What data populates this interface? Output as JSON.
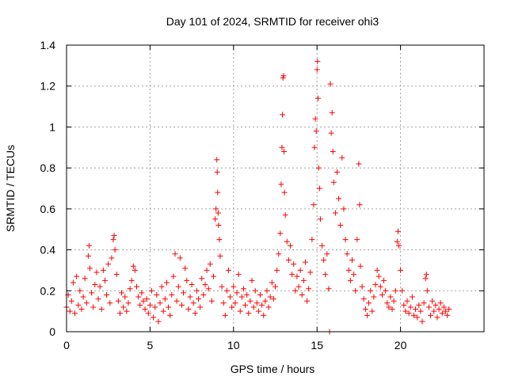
{
  "chart_data": {
    "type": "scatter",
    "title": "Day 101 of 2024, SRMTID for receiver ohi3",
    "xlabel": "GPS time / hours",
    "ylabel": "SRMTID / TECUs",
    "xlim": [
      0,
      25
    ],
    "ylim": [
      0,
      1.4
    ],
    "x_ticks": [
      "0",
      "5",
      "10",
      "15",
      "20"
    ],
    "x_tick_values": [
      0,
      5,
      10,
      15,
      20
    ],
    "y_ticks": [
      "0",
      "0.2",
      "0.4",
      "0.6",
      "0.8",
      "1",
      "1.2",
      "1.4"
    ],
    "y_tick_values": [
      0,
      0.2,
      0.4,
      0.6,
      0.8,
      1.0,
      1.2,
      1.4
    ],
    "grid": true,
    "marker": "+",
    "series": [
      {
        "name": "SRMTID",
        "color": "#ff0000",
        "points": [
          [
            0.0,
            0.12
          ],
          [
            0.1,
            0.18
          ],
          [
            0.2,
            0.1
          ],
          [
            0.3,
            0.15
          ],
          [
            0.4,
            0.24
          ],
          [
            0.5,
            0.09
          ],
          [
            0.6,
            0.27
          ],
          [
            0.7,
            0.13
          ],
          [
            0.8,
            0.2
          ],
          [
            0.9,
            0.11
          ],
          [
            1.0,
            0.17
          ],
          [
            1.1,
            0.26
          ],
          [
            1.2,
            0.14
          ],
          [
            1.3,
            0.37
          ],
          [
            1.35,
            0.42
          ],
          [
            1.4,
            0.31
          ],
          [
            1.5,
            0.19
          ],
          [
            1.6,
            0.12
          ],
          [
            1.7,
            0.23
          ],
          [
            1.8,
            0.29
          ],
          [
            1.9,
            0.16
          ],
          [
            2.0,
            0.22
          ],
          [
            2.1,
            0.11
          ],
          [
            2.2,
            0.3
          ],
          [
            2.3,
            0.25
          ],
          [
            2.4,
            0.18
          ],
          [
            2.5,
            0.33
          ],
          [
            2.6,
            0.14
          ],
          [
            2.7,
            0.36
          ],
          [
            2.8,
            0.45
          ],
          [
            2.85,
            0.47
          ],
          [
            2.9,
            0.4
          ],
          [
            3.0,
            0.28
          ],
          [
            3.1,
            0.15
          ],
          [
            3.2,
            0.09
          ],
          [
            3.3,
            0.19
          ],
          [
            3.4,
            0.12
          ],
          [
            3.5,
            0.17
          ],
          [
            3.6,
            0.1
          ],
          [
            3.7,
            0.14
          ],
          [
            3.8,
            0.21
          ],
          [
            3.9,
            0.25
          ],
          [
            4.0,
            0.32
          ],
          [
            4.1,
            0.3
          ],
          [
            4.2,
            0.22
          ],
          [
            4.3,
            0.17
          ],
          [
            4.4,
            0.13
          ],
          [
            4.5,
            0.19
          ],
          [
            4.6,
            0.15
          ],
          [
            4.7,
            0.11
          ],
          [
            4.8,
            0.16
          ],
          [
            4.9,
            0.09
          ],
          [
            5.0,
            0.13
          ],
          [
            5.1,
            0.2
          ],
          [
            5.2,
            0.07
          ],
          [
            5.3,
            0.12
          ],
          [
            5.4,
            0.18
          ],
          [
            5.5,
            0.05
          ],
          [
            5.6,
            0.14
          ],
          [
            5.7,
            0.22
          ],
          [
            5.8,
            0.1
          ],
          [
            5.9,
            0.16
          ],
          [
            6.0,
            0.24
          ],
          [
            6.1,
            0.12
          ],
          [
            6.2,
            0.08
          ],
          [
            6.3,
            0.18
          ],
          [
            6.4,
            0.27
          ],
          [
            6.5,
            0.38
          ],
          [
            6.6,
            0.15
          ],
          [
            6.7,
            0.22
          ],
          [
            6.8,
            0.36
          ],
          [
            6.9,
            0.13
          ],
          [
            7.0,
            0.19
          ],
          [
            7.1,
            0.31
          ],
          [
            7.2,
            0.25
          ],
          [
            7.3,
            0.11
          ],
          [
            7.4,
            0.17
          ],
          [
            7.5,
            0.23
          ],
          [
            7.6,
            0.14
          ],
          [
            7.7,
            0.09
          ],
          [
            7.8,
            0.2
          ],
          [
            7.9,
            0.16
          ],
          [
            8.0,
            0.12
          ],
          [
            8.1,
            0.26
          ],
          [
            8.2,
            0.18
          ],
          [
            8.3,
            0.23
          ],
          [
            8.4,
            0.3
          ],
          [
            8.5,
            0.21
          ],
          [
            8.6,
            0.33
          ],
          [
            8.7,
            0.15
          ],
          [
            8.8,
            0.27
          ],
          [
            8.9,
            0.55
          ],
          [
            8.95,
            0.6
          ],
          [
            9.0,
            0.84
          ],
          [
            9.02,
            0.78
          ],
          [
            9.05,
            0.68
          ],
          [
            9.08,
            0.58
          ],
          [
            9.1,
            0.52
          ],
          [
            9.15,
            0.45
          ],
          [
            9.2,
            0.37
          ],
          [
            9.3,
            0.22
          ],
          [
            9.4,
            0.14
          ],
          [
            9.5,
            0.08
          ],
          [
            9.6,
            0.2
          ],
          [
            9.7,
            0.3
          ],
          [
            9.8,
            0.17
          ],
          [
            9.9,
            0.12
          ],
          [
            10.0,
            0.22
          ],
          [
            10.1,
            0.14
          ],
          [
            10.2,
            0.19
          ],
          [
            10.3,
            0.28
          ],
          [
            10.4,
            0.1
          ],
          [
            10.5,
            0.17
          ],
          [
            10.6,
            0.21
          ],
          [
            10.7,
            0.13
          ],
          [
            10.8,
            0.18
          ],
          [
            10.9,
            0.09
          ],
          [
            11.0,
            0.15
          ],
          [
            11.1,
            0.25
          ],
          [
            11.2,
            0.12
          ],
          [
            11.3,
            0.2
          ],
          [
            11.4,
            0.14
          ],
          [
            11.5,
            0.1
          ],
          [
            11.6,
            0.18
          ],
          [
            11.7,
            0.13
          ],
          [
            11.8,
            0.08
          ],
          [
            11.9,
            0.15
          ],
          [
            12.0,
            0.2
          ],
          [
            12.1,
            0.12
          ],
          [
            12.2,
            0.17
          ],
          [
            12.3,
            0.24
          ],
          [
            12.4,
            0.16
          ],
          [
            12.5,
            0.22
          ],
          [
            12.6,
            0.3
          ],
          [
            12.7,
            0.38
          ],
          [
            12.8,
            0.48
          ],
          [
            12.85,
            0.72
          ],
          [
            12.9,
            0.9
          ],
          [
            12.93,
            1.06
          ],
          [
            12.96,
            1.24
          ],
          [
            13.0,
            1.25
          ],
          [
            13.02,
            0.88
          ],
          [
            13.05,
            0.68
          ],
          [
            13.1,
            0.57
          ],
          [
            13.2,
            0.44
          ],
          [
            13.3,
            0.35
          ],
          [
            13.4,
            0.42
          ],
          [
            13.5,
            0.28
          ],
          [
            13.6,
            0.33
          ],
          [
            13.7,
            0.2
          ],
          [
            13.8,
            0.27
          ],
          [
            13.9,
            0.22
          ],
          [
            14.0,
            0.3
          ],
          [
            14.1,
            0.18
          ],
          [
            14.2,
            0.25
          ],
          [
            14.3,
            0.34
          ],
          [
            14.4,
            0.15
          ],
          [
            14.5,
            0.21
          ],
          [
            14.6,
            0.29
          ],
          [
            14.7,
            0.45
          ],
          [
            14.8,
            0.62
          ],
          [
            14.85,
            0.9
          ],
          [
            14.9,
            1.04
          ],
          [
            14.95,
            0.98
          ],
          [
            15.0,
            1.28
          ],
          [
            15.03,
            1.32
          ],
          [
            15.06,
            1.14
          ],
          [
            15.1,
            0.8
          ],
          [
            15.15,
            0.7
          ],
          [
            15.2,
            0.55
          ],
          [
            15.3,
            0.42
          ],
          [
            15.4,
            0.35
          ],
          [
            15.5,
            0.28
          ],
          [
            15.6,
            0.38
          ],
          [
            15.7,
            0.21
          ],
          [
            15.75,
            0.0
          ],
          [
            15.8,
            1.21
          ],
          [
            15.85,
            0.97
          ],
          [
            15.9,
            1.07
          ],
          [
            15.95,
            0.88
          ],
          [
            16.0,
            0.73
          ],
          [
            16.1,
            0.58
          ],
          [
            16.2,
            0.78
          ],
          [
            16.3,
            0.65
          ],
          [
            16.4,
            0.52
          ],
          [
            16.5,
            0.85
          ],
          [
            16.6,
            0.6
          ],
          [
            16.7,
            0.45
          ],
          [
            16.8,
            0.38
          ],
          [
            16.9,
            0.3
          ],
          [
            17.0,
            0.25
          ],
          [
            17.1,
            0.35
          ],
          [
            17.2,
            0.28
          ],
          [
            17.3,
            0.2
          ],
          [
            17.4,
            0.45
          ],
          [
            17.5,
            0.82
          ],
          [
            17.55,
            0.62
          ],
          [
            17.6,
            0.32
          ],
          [
            17.7,
            0.22
          ],
          [
            17.8,
            0.16
          ],
          [
            17.9,
            0.11
          ],
          [
            18.0,
            0.08
          ],
          [
            18.1,
            0.14
          ],
          [
            18.2,
            0.2
          ],
          [
            18.3,
            0.1
          ],
          [
            18.4,
            0.17
          ],
          [
            18.5,
            0.23
          ],
          [
            18.6,
            0.3
          ],
          [
            18.7,
            0.27
          ],
          [
            18.8,
            0.22
          ],
          [
            18.9,
            0.18
          ],
          [
            19.0,
            0.25
          ],
          [
            19.1,
            0.2
          ],
          [
            19.2,
            0.14
          ],
          [
            19.3,
            0.12
          ],
          [
            19.4,
            0.17
          ],
          [
            19.5,
            0.11
          ],
          [
            19.6,
            0.15
          ],
          [
            19.7,
            0.2
          ],
          [
            19.8,
            0.44
          ],
          [
            19.85,
            0.49
          ],
          [
            19.9,
            0.42
          ],
          [
            20.0,
            0.3
          ],
          [
            20.1,
            0.2
          ],
          [
            20.2,
            0.13
          ],
          [
            20.3,
            0.1
          ],
          [
            20.4,
            0.15
          ],
          [
            20.5,
            0.09
          ],
          [
            20.6,
            0.12
          ],
          [
            20.7,
            0.17
          ],
          [
            20.8,
            0.08
          ],
          [
            20.9,
            0.11
          ],
          [
            21.0,
            0.07
          ],
          [
            21.1,
            0.13
          ],
          [
            21.2,
            0.1
          ],
          [
            21.3,
            0.05
          ],
          [
            21.4,
            0.14
          ],
          [
            21.5,
            0.26
          ],
          [
            21.55,
            0.28
          ],
          [
            21.6,
            0.2
          ],
          [
            21.7,
            0.12
          ],
          [
            21.8,
            0.08
          ],
          [
            21.9,
            0.15
          ],
          [
            22.0,
            0.1
          ],
          [
            22.1,
            0.13
          ],
          [
            22.2,
            0.07
          ],
          [
            22.3,
            0.11
          ],
          [
            22.4,
            0.14
          ],
          [
            22.5,
            0.09
          ],
          [
            22.6,
            0.12
          ],
          [
            22.7,
            0.1
          ],
          [
            22.8,
            0.08
          ],
          [
            22.9,
            0.11
          ]
        ]
      }
    ]
  }
}
